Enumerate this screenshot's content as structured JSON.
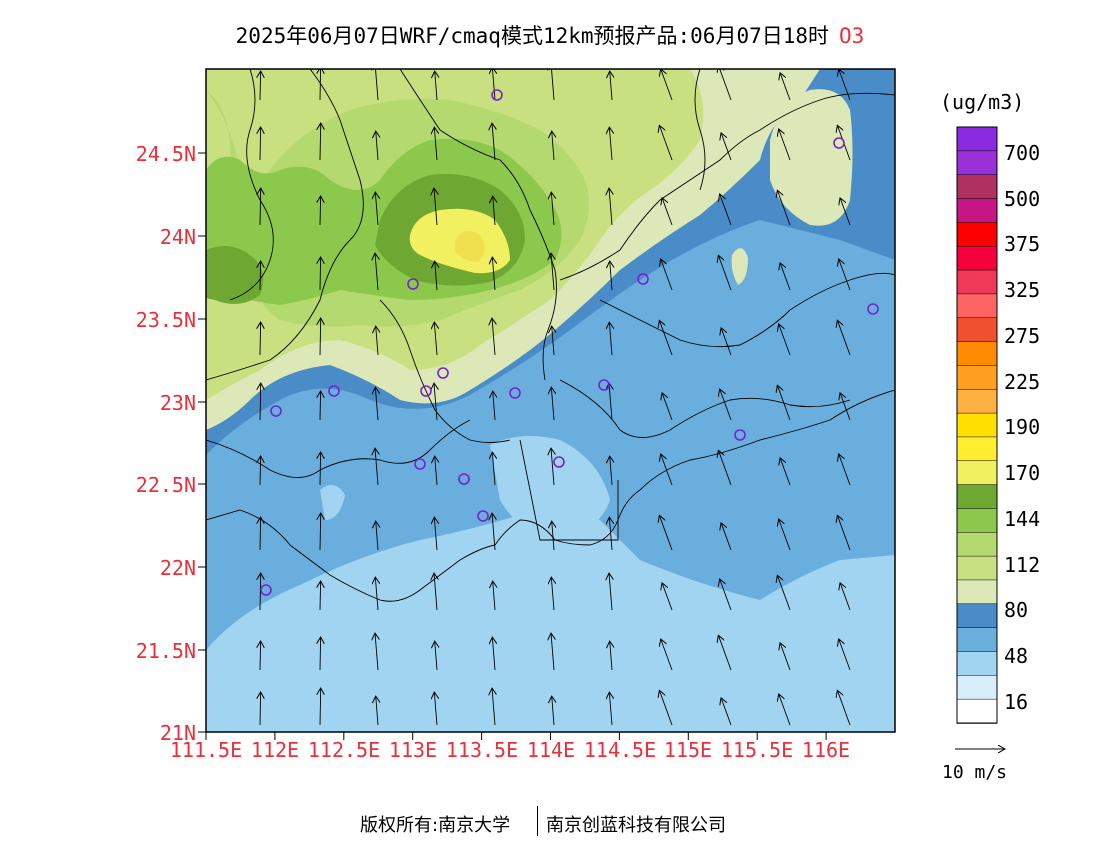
{
  "title": {
    "main": "2025年06月07日WRF/cmaq模式12km预报产品:06月07日18时",
    "species": "O3"
  },
  "map": {
    "lat_ticks": [
      "24.5N",
      "24N",
      "23.5N",
      "23N",
      "22.5N",
      "22N",
      "21.5N",
      "21N"
    ],
    "lon_ticks": [
      "111.5E",
      "112E",
      "112.5E",
      "113E",
      "113.5E",
      "114E",
      "114.5E",
      "115E",
      "115.5E",
      "116E"
    ],
    "station_color": "#7722cc",
    "vector_color": "#000000",
    "boundary_color": "#000000"
  },
  "legend": {
    "unit": "(ug/m3)",
    "labels": [
      "700",
      "500",
      "375",
      "325",
      "275",
      "225",
      "190",
      "170",
      "144",
      "112",
      "80",
      "48",
      "16"
    ],
    "colors": [
      "#8a2be2",
      "#9b30d9",
      "#b03060",
      "#c71585",
      "#ff0000",
      "#f5003c",
      "#f03858",
      "#ff6464",
      "#ee5030",
      "#ff8c00",
      "#ffa020",
      "#ffb040",
      "#ffe000",
      "#ffee30",
      "#f0f060",
      "#6ea832",
      "#8cc84b",
      "#b4d96e",
      "#c8e080",
      "#dce8b8",
      "#4a8cc8",
      "#6aaede",
      "#a0d4f0",
      "#d8eefa",
      "#ffffff"
    ]
  },
  "vector_key": {
    "label": "10 m/s"
  },
  "footer": {
    "copyright": "版权所有:南京大学",
    "company": "南京创蓝科技有限公司"
  }
}
